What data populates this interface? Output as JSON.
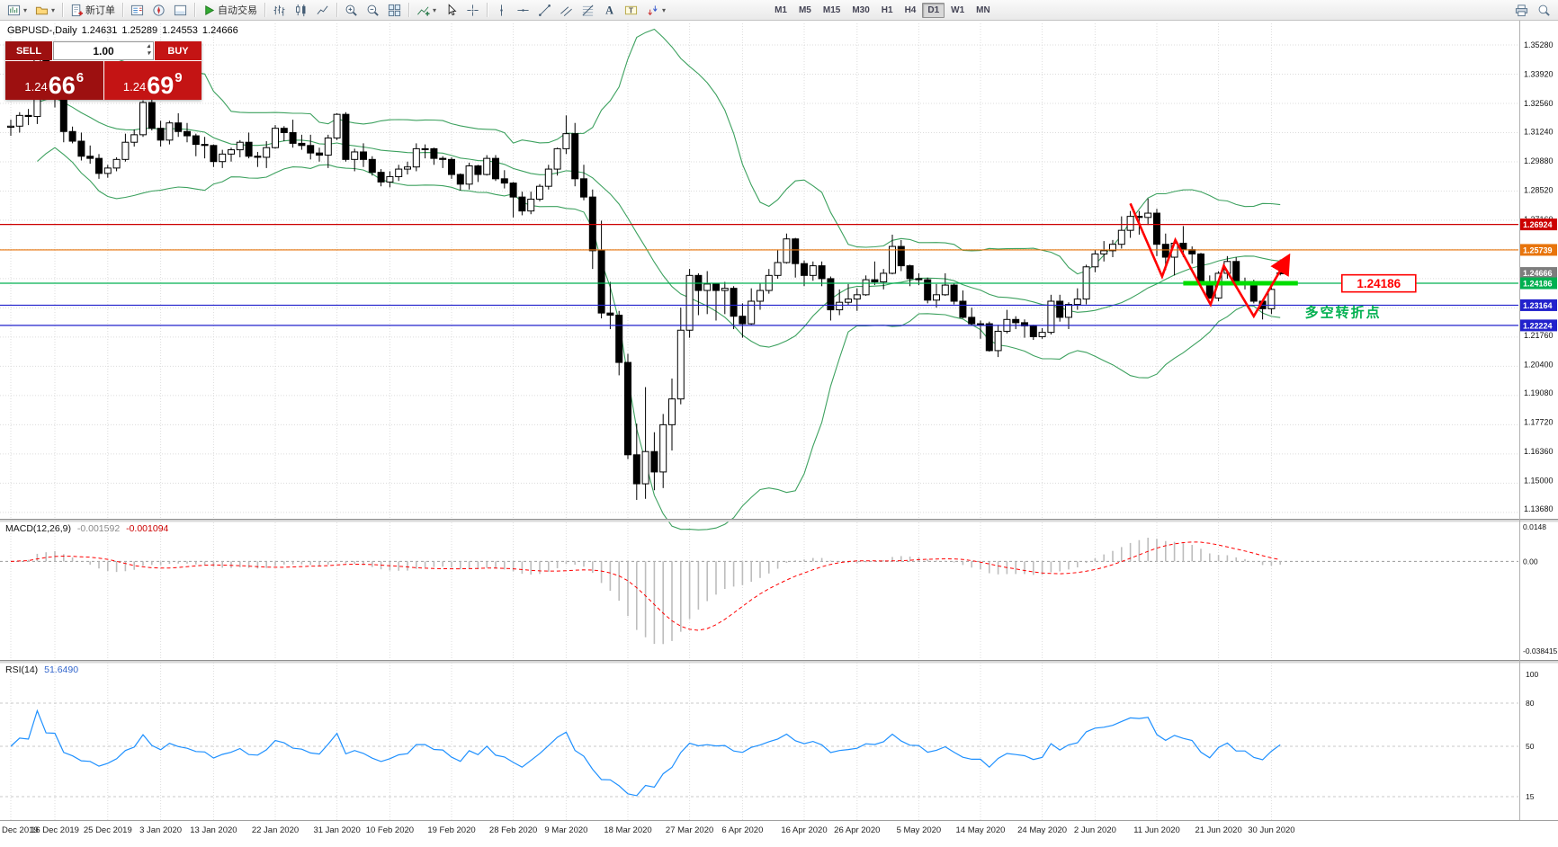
{
  "toolbar": {
    "groups": [
      {
        "items": [
          {
            "name": "new-chart-button",
            "icon": "new-chart-icon",
            "dropdown": true
          },
          {
            "name": "chart-profiles-button",
            "icon": "chart-profiles-icon",
            "dropdown": true
          }
        ]
      },
      {
        "items": [
          {
            "name": "new-order-button",
            "icon": "new-order-icon",
            "label": "新订单"
          }
        ]
      },
      {
        "items": [
          {
            "name": "market-watch-button",
            "icon": "market-watch-icon"
          },
          {
            "name": "navigator-button",
            "icon": "navigator-icon"
          },
          {
            "name": "terminal-button",
            "icon": "terminal-icon"
          }
        ]
      },
      {
        "items": [
          {
            "name": "autotrading-button",
            "icon": "autotrading-icon",
            "label": "自动交易"
          }
        ]
      },
      {
        "items": [
          {
            "name": "bar-chart-button",
            "icon": "bar-chart-icon"
          },
          {
            "name": "candlestick-chart-button",
            "icon": "candlestick-icon"
          },
          {
            "name": "line-chart-button",
            "icon": "line-chart-icon"
          }
        ]
      },
      {
        "items": [
          {
            "name": "zoom-in-button",
            "icon": "zoom-in-icon"
          },
          {
            "name": "zoom-out-button",
            "icon": "zoom-out-icon"
          },
          {
            "name": "tile-windows-button",
            "icon": "tile-windows-icon"
          }
        ]
      },
      {
        "items": [
          {
            "name": "indicators-button",
            "icon": "indicators-icon",
            "dropdown": true
          },
          {
            "name": "cursor-button",
            "icon": "cursor-icon"
          },
          {
            "name": "crosshair-button",
            "icon": "crosshair-icon"
          }
        ]
      },
      {
        "items": [
          {
            "name": "vertical-line-button",
            "icon": "vertical-line-icon"
          },
          {
            "name": "horizontal-line-button",
            "icon": "horizontal-line-icon"
          },
          {
            "name": "trendline-button",
            "icon": "trendline-icon"
          },
          {
            "name": "equidistant-channel-button",
            "icon": "equidistant-channel-icon"
          },
          {
            "name": "fibonacci-button",
            "icon": "fibonacci-icon"
          },
          {
            "name": "text-button",
            "icon": "text-icon"
          },
          {
            "name": "text-label-button",
            "icon": "text-label-icon"
          },
          {
            "name": "arrows-button",
            "icon": "arrows-icon",
            "dropdown": true
          }
        ]
      }
    ],
    "timeframes": {
      "items": [
        "M1",
        "M5",
        "M15",
        "M30",
        "H1",
        "H4",
        "D1",
        "W1",
        "MN"
      ],
      "active": "D1"
    },
    "right_icons": [
      {
        "name": "print-button",
        "icon": "print-icon"
      },
      {
        "name": "search-button",
        "icon": "search-icon"
      }
    ]
  },
  "trade_panel": {
    "sell_label": "SELL",
    "buy_label": "BUY",
    "volume": "1.00",
    "sell_price": {
      "whole": "1.24",
      "pips": "66",
      "point": "6"
    },
    "buy_price": {
      "whole": "1.24",
      "pips": "69",
      "point": "9"
    }
  },
  "chart_header": {
    "symbol_period": "GBPUSD-,Daily",
    "o": "1.24631",
    "h": "1.25289",
    "l": "1.24553",
    "c": "1.24666"
  },
  "chart_data": {
    "type": "candlestick",
    "symbol": "GBPUSD",
    "timeframe": "Daily",
    "candles": [
      [
        1.3145,
        1.318,
        1.3105,
        1.315
      ],
      [
        1.315,
        1.3215,
        1.312,
        1.32
      ],
      [
        1.32,
        1.323,
        1.3155,
        1.3195
      ],
      [
        1.3195,
        1.3515,
        1.316,
        1.3495
      ],
      [
        1.3495,
        1.3515,
        1.332,
        1.333
      ],
      [
        1.333,
        1.3422,
        1.3237,
        1.3327
      ],
      [
        1.3327,
        1.3335,
        1.3075,
        1.3125
      ],
      [
        1.3125,
        1.3148,
        1.307,
        1.308
      ],
      [
        1.308,
        1.312,
        1.299,
        1.301
      ],
      [
        1.301,
        1.306,
        1.2975,
        1.3
      ],
      [
        1.3,
        1.302,
        1.2905,
        1.293
      ],
      [
        1.293,
        1.297,
        1.291,
        1.2955
      ],
      [
        1.2955,
        1.3005,
        1.294,
        1.2995
      ],
      [
        1.2995,
        1.3115,
        1.2985,
        1.3075
      ],
      [
        1.3075,
        1.3135,
        1.3055,
        1.311
      ],
      [
        1.311,
        1.327,
        1.31,
        1.326
      ],
      [
        1.326,
        1.3285,
        1.313,
        1.314
      ],
      [
        1.314,
        1.3175,
        1.3055,
        1.3085
      ],
      [
        1.3085,
        1.3175,
        1.3065,
        1.3165
      ],
      [
        1.3165,
        1.321,
        1.31,
        1.3125
      ],
      [
        1.3125,
        1.3165,
        1.3075,
        1.3105
      ],
      [
        1.3105,
        1.3115,
        1.301,
        1.3065
      ],
      [
        1.3065,
        1.31,
        1.3,
        1.306
      ],
      [
        1.306,
        1.3065,
        1.296,
        1.2985
      ],
      [
        1.2985,
        1.304,
        1.2955,
        1.302
      ],
      [
        1.302,
        1.305,
        1.2985,
        1.304
      ],
      [
        1.304,
        1.3085,
        1.3005,
        1.3075
      ],
      [
        1.3075,
        1.312,
        1.3,
        1.301
      ],
      [
        1.301,
        1.303,
        1.296,
        1.3005
      ],
      [
        1.3005,
        1.308,
        1.2955,
        1.305
      ],
      [
        1.305,
        1.3155,
        1.3045,
        1.314
      ],
      [
        1.314,
        1.315,
        1.308,
        1.312
      ],
      [
        1.312,
        1.318,
        1.305,
        1.307
      ],
      [
        1.307,
        1.311,
        1.304,
        1.306
      ],
      [
        1.306,
        1.311,
        1.2995,
        1.3025
      ],
      [
        1.3025,
        1.305,
        1.2985,
        1.3015
      ],
      [
        1.3015,
        1.311,
        1.2955,
        1.3095
      ],
      [
        1.3095,
        1.321,
        1.3085,
        1.3205
      ],
      [
        1.3205,
        1.3215,
        1.2985,
        1.2995
      ],
      [
        1.2995,
        1.3045,
        1.294,
        1.303
      ],
      [
        1.303,
        1.307,
        1.296,
        1.2995
      ],
      [
        1.2995,
        1.301,
        1.292,
        1.2935
      ],
      [
        1.2935,
        1.295,
        1.287,
        1.289
      ],
      [
        1.289,
        1.294,
        1.2865,
        1.2915
      ],
      [
        1.2915,
        1.297,
        1.2895,
        1.295
      ],
      [
        1.295,
        1.2985,
        1.2925,
        1.296
      ],
      [
        1.296,
        1.307,
        1.294,
        1.3045
      ],
      [
        1.3045,
        1.3065,
        1.3,
        1.3045
      ],
      [
        1.3045,
        1.305,
        1.297,
        1.3
      ],
      [
        1.3,
        1.301,
        1.2955,
        1.2995
      ],
      [
        1.2995,
        1.3005,
        1.2905,
        1.2925
      ],
      [
        1.2925,
        1.293,
        1.285,
        1.288
      ],
      [
        1.288,
        1.298,
        1.2855,
        1.2965
      ],
      [
        1.2965,
        1.297,
        1.289,
        1.2925
      ],
      [
        1.2925,
        1.3015,
        1.292,
        1.3
      ],
      [
        1.3,
        1.3015,
        1.2895,
        1.2905
      ],
      [
        1.2905,
        1.2945,
        1.286,
        1.2885
      ],
      [
        1.2885,
        1.289,
        1.2725,
        1.282
      ],
      [
        1.282,
        1.2845,
        1.2735,
        1.2755
      ],
      [
        1.2755,
        1.2845,
        1.274,
        1.281
      ],
      [
        1.281,
        1.288,
        1.28,
        1.287
      ],
      [
        1.287,
        1.297,
        1.2855,
        1.295
      ],
      [
        1.295,
        1.305,
        1.292,
        1.3045
      ],
      [
        1.3045,
        1.32,
        1.302,
        1.3115
      ],
      [
        1.3115,
        1.3165,
        1.287,
        1.2905
      ],
      [
        1.2905,
        1.297,
        1.2805,
        1.282
      ],
      [
        1.282,
        1.2855,
        1.2485,
        1.257
      ],
      [
        1.257,
        1.271,
        1.2255,
        1.228
      ],
      [
        1.228,
        1.2425,
        1.2205,
        1.227
      ],
      [
        1.227,
        1.229,
        1.199,
        1.205
      ],
      [
        1.205,
        1.209,
        1.16,
        1.162
      ],
      [
        1.162,
        1.1765,
        1.141,
        1.1485
      ],
      [
        1.1485,
        1.1935,
        1.1415,
        1.1635
      ],
      [
        1.1635,
        1.1725,
        1.1455,
        1.154
      ],
      [
        1.154,
        1.181,
        1.1465,
        1.176
      ],
      [
        1.176,
        1.1975,
        1.164,
        1.188
      ],
      [
        1.188,
        1.2305,
        1.1855,
        1.22
      ],
      [
        1.22,
        1.2485,
        1.2165,
        1.2455
      ],
      [
        1.2455,
        1.2465,
        1.227,
        1.2385
      ],
      [
        1.2385,
        1.2475,
        1.2275,
        1.2415
      ],
      [
        1.2415,
        1.242,
        1.2245,
        1.2385
      ],
      [
        1.2385,
        1.2425,
        1.2275,
        1.2395
      ],
      [
        1.2395,
        1.2405,
        1.2205,
        1.2265
      ],
      [
        1.2265,
        1.2325,
        1.2165,
        1.223
      ],
      [
        1.223,
        1.2395,
        1.2225,
        1.2335
      ],
      [
        1.2335,
        1.242,
        1.2295,
        1.2385
      ],
      [
        1.2385,
        1.2485,
        1.237,
        1.2455
      ],
      [
        1.2455,
        1.2575,
        1.244,
        1.2515
      ],
      [
        1.2515,
        1.265,
        1.251,
        1.2625
      ],
      [
        1.2625,
        1.263,
        1.2445,
        1.251
      ],
      [
        1.251,
        1.2525,
        1.2405,
        1.2455
      ],
      [
        1.2455,
        1.252,
        1.243,
        1.25
      ],
      [
        1.25,
        1.252,
        1.2405,
        1.244
      ],
      [
        1.244,
        1.245,
        1.2245,
        1.2295
      ],
      [
        1.2295,
        1.239,
        1.227,
        1.233
      ],
      [
        1.233,
        1.2415,
        1.2315,
        1.2345
      ],
      [
        1.2345,
        1.2395,
        1.229,
        1.2365
      ],
      [
        1.2365,
        1.2455,
        1.236,
        1.2435
      ],
      [
        1.2435,
        1.252,
        1.241,
        1.2425
      ],
      [
        1.2425,
        1.2485,
        1.239,
        1.2465
      ],
      [
        1.2465,
        1.2645,
        1.246,
        1.259
      ],
      [
        1.259,
        1.262,
        1.2475,
        1.25
      ],
      [
        1.25,
        1.2505,
        1.2405,
        1.244
      ],
      [
        1.244,
        1.2465,
        1.241,
        1.2435
      ],
      [
        1.2435,
        1.2445,
        1.2325,
        1.234
      ],
      [
        1.234,
        1.2415,
        1.2305,
        1.2365
      ],
      [
        1.2365,
        1.2465,
        1.236,
        1.241
      ],
      [
        1.241,
        1.242,
        1.232,
        1.2335
      ],
      [
        1.2335,
        1.2385,
        1.2255,
        1.226
      ],
      [
        1.226,
        1.2305,
        1.222,
        1.223
      ],
      [
        1.223,
        1.2245,
        1.216,
        1.223
      ],
      [
        1.223,
        1.224,
        1.21,
        1.2105
      ],
      [
        1.2105,
        1.2225,
        1.2075,
        1.2195
      ],
      [
        1.2195,
        1.2295,
        1.2185,
        1.225
      ],
      [
        1.225,
        1.2265,
        1.2205,
        1.2235
      ],
      [
        1.2235,
        1.225,
        1.2165,
        1.222
      ],
      [
        1.222,
        1.2225,
        1.2155,
        1.217
      ],
      [
        1.217,
        1.221,
        1.216,
        1.219
      ],
      [
        1.219,
        1.2365,
        1.218,
        1.2335
      ],
      [
        1.2335,
        1.2365,
        1.224,
        1.226
      ],
      [
        1.226,
        1.233,
        1.2205,
        1.232
      ],
      [
        1.232,
        1.2395,
        1.2295,
        1.2345
      ],
      [
        1.2345,
        1.2505,
        1.232,
        1.2495
      ],
      [
        1.2495,
        1.2575,
        1.247,
        1.2555
      ],
      [
        1.2555,
        1.2615,
        1.252,
        1.257
      ],
      [
        1.257,
        1.262,
        1.254,
        1.26
      ],
      [
        1.26,
        1.273,
        1.258,
        1.2665
      ],
      [
        1.2665,
        1.2755,
        1.263,
        1.273
      ],
      [
        1.273,
        1.2755,
        1.2645,
        1.2725
      ],
      [
        1.2725,
        1.2813,
        1.269,
        1.2745
      ],
      [
        1.2745,
        1.2765,
        1.2545,
        1.26
      ],
      [
        1.26,
        1.265,
        1.248,
        1.254
      ],
      [
        1.254,
        1.261,
        1.2455,
        1.2605
      ],
      [
        1.2605,
        1.2685,
        1.254,
        1.2575
      ],
      [
        1.2575,
        1.259,
        1.251,
        1.2555
      ],
      [
        1.2555,
        1.256,
        1.24,
        1.2425
      ],
      [
        1.2425,
        1.2455,
        1.2345,
        1.235
      ],
      [
        1.235,
        1.2475,
        1.2335,
        1.2465
      ],
      [
        1.2465,
        1.2545,
        1.244,
        1.252
      ],
      [
        1.252,
        1.254,
        1.2405,
        1.242
      ],
      [
        1.242,
        1.2445,
        1.239,
        1.242
      ],
      [
        1.242,
        1.2435,
        1.2325,
        1.2335
      ],
      [
        1.2335,
        1.234,
        1.225,
        1.23
      ],
      [
        1.23,
        1.2403,
        1.2275,
        1.239
      ],
      [
        1.2463,
        1.2529,
        1.2455,
        1.2467
      ]
    ],
    "x_ticks": [
      {
        "index": 0,
        "label": "Dec 2019"
      },
      {
        "index": 5,
        "label": "16 Dec 2019"
      },
      {
        "index": 11,
        "label": "25 Dec 2019"
      },
      {
        "index": 17,
        "label": "3 Jan 2020"
      },
      {
        "index": 23,
        "label": "13 Jan 2020"
      },
      {
        "index": 30,
        "label": "22 Jan 2020"
      },
      {
        "index": 37,
        "label": "31 Jan 2020"
      },
      {
        "index": 43,
        "label": "10 Feb 2020"
      },
      {
        "index": 50,
        "label": "19 Feb 2020"
      },
      {
        "index": 57,
        "label": "28 Feb 2020"
      },
      {
        "index": 63,
        "label": "9 Mar 2020"
      },
      {
        "index": 70,
        "label": "18 Mar 2020"
      },
      {
        "index": 77,
        "label": "27 Mar 2020"
      },
      {
        "index": 83,
        "label": "6 Apr 2020"
      },
      {
        "index": 90,
        "label": "16 Apr 2020"
      },
      {
        "index": 96,
        "label": "26 Apr 2020"
      },
      {
        "index": 103,
        "label": "5 May 2020"
      },
      {
        "index": 110,
        "label": "14 May 2020"
      },
      {
        "index": 117,
        "label": "24 May 2020"
      },
      {
        "index": 123,
        "label": "2 Jun 2020"
      },
      {
        "index": 130,
        "label": "11 Jun 2020"
      },
      {
        "index": 137,
        "label": "21 Jun 2020"
      },
      {
        "index": 143,
        "label": "30 Jun 2020"
      }
    ],
    "price_ticks": [
      "1.35280",
      "1.33920",
      "1.32560",
      "1.31240",
      "1.29880",
      "1.28520",
      "1.27160",
      "1.21760",
      "1.20400",
      "1.19080",
      "1.17720",
      "1.16360",
      "1.15000",
      "1.13680"
    ],
    "overlays": {
      "bollinger": {
        "period": 20,
        "deviations": 2,
        "color": "#3da15f"
      }
    },
    "hlines": [
      {
        "price": 1.26924,
        "label": "1.26924",
        "color": "#cc0000"
      },
      {
        "price": 1.25739,
        "label": "1.25739",
        "color": "#e8740c"
      },
      {
        "price": 1.24186,
        "label": "1.24186",
        "color": "#00b050"
      },
      {
        "price": 1.23164,
        "label": "1.23164",
        "color": "#2222cc"
      },
      {
        "price": 1.22224,
        "label": "1.22224",
        "color": "#2222cc"
      }
    ],
    "current_price": {
      "value": 1.24666,
      "label": "1.24666",
      "tag_bg": "#7d7d7d"
    },
    "annotations": {
      "support_band": {
        "price": 1.24186,
        "from_index": 133,
        "to_index": 146,
        "color": "#00dd00",
        "width": 5
      },
      "trend_zigzag": {
        "color": "#ff0000",
        "points": [
          [
            127,
            1.279
          ],
          [
            130.6,
            1.245
          ],
          [
            132.1,
            1.262
          ],
          [
            136.1,
            1.232
          ],
          [
            137.6,
            1.25
          ],
          [
            141,
            1.2265
          ],
          [
            144.6,
            1.252
          ]
        ]
      },
      "price_callout": {
        "text": "1.24186",
        "color": "#ff0000",
        "index": 151,
        "price": 1.2418
      },
      "note": {
        "text": "多空转折点",
        "color": "#00b050",
        "index": 146.8,
        "price": 1.2283
      }
    }
  },
  "macd": {
    "title": "MACD(12,26,9)",
    "value_main": "-0.001592",
    "value_signal": "-0.001094",
    "fast": 12,
    "slow": 26,
    "signal": 9,
    "scale_labels": [
      "0.0148",
      "0.00",
      "-0.038415"
    ],
    "hist_color": "#bdbdbd",
    "signal_color": "#ff0000"
  },
  "rsi": {
    "title": "RSI(14)",
    "value": "51.6490",
    "period": 14,
    "scale_labels": [
      "100",
      "80",
      "50",
      "15"
    ],
    "levels": [
      80,
      50,
      15
    ],
    "color": "#1e90ff"
  }
}
